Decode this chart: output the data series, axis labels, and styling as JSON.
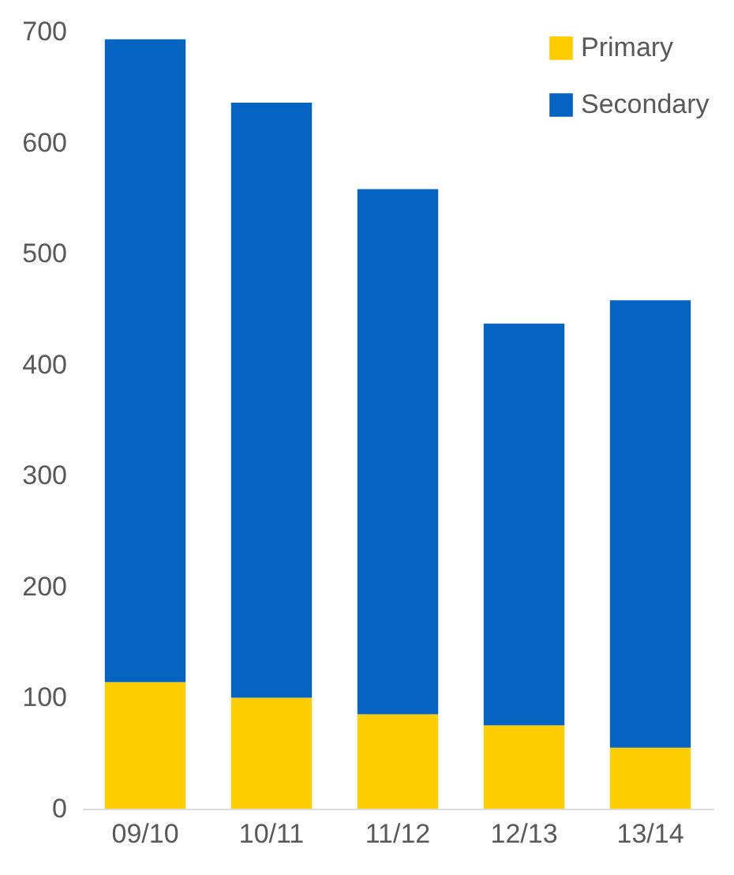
{
  "chart_data": {
    "type": "bar",
    "stacked": true,
    "categories": [
      "09/10",
      "10/11",
      "11/12",
      "12/13",
      "13/14"
    ],
    "series": [
      {
        "name": "Primary",
        "color": "#ffcc00",
        "values": [
          114,
          100,
          85,
          75,
          55
        ]
      },
      {
        "name": "Secondary",
        "color": "#0563c1",
        "values": [
          579,
          536,
          473,
          362,
          403
        ]
      }
    ],
    "ylim": [
      0,
      700
    ],
    "yticks": [
      0,
      100,
      200,
      300,
      400,
      500,
      600,
      700
    ],
    "grid": false,
    "legend": "top right"
  }
}
